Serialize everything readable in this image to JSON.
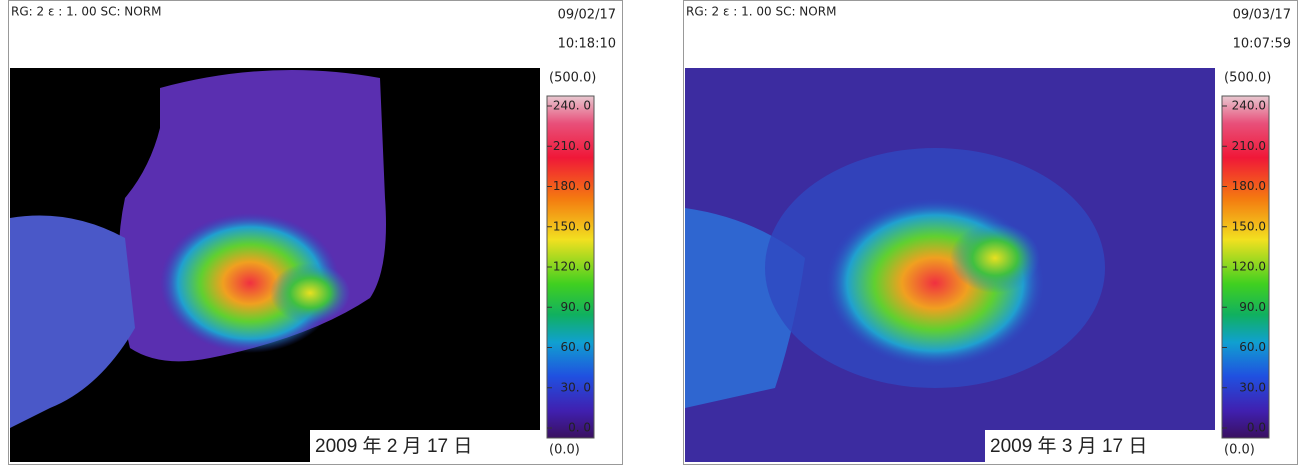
{
  "panels": [
    {
      "header": "RG: 2 ε : 1. 00 SC: NORM",
      "date": "09/02/17",
      "time": "10:18:10",
      "scale_max": "(500.0)",
      "scale_min": "(0.0)",
      "scale_labels": [
        "240. 0",
        "210. 0",
        "180. 0",
        "150. 0",
        "120. 0",
        "90. 0",
        "60. 0",
        "30. 0",
        "0. 0"
      ],
      "caption": "2009 年 2 月 17 日"
    },
    {
      "header": "RG: 2 ε : 1. 00 SC: NORM",
      "date": "09/03/17",
      "time": "10:07:59",
      "scale_max": "(500.0)",
      "scale_min": "(0.0)",
      "scale_labels": [
        "240.0",
        "210.0",
        "180.0",
        "150.0",
        "120.0",
        "90.0",
        "60.0",
        "30.0",
        "0.0"
      ],
      "caption": "2009 年 3 月 17 日"
    }
  ]
}
